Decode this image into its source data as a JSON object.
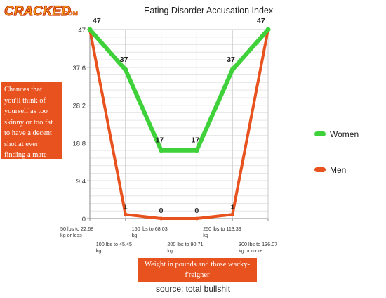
{
  "branding": {
    "logo_text": "CRACKED",
    "logo_suffix": "COM"
  },
  "chart_data": {
    "type": "line",
    "title": "Eating Disorder Accusation Index",
    "ylabel": "Chances that you'll think of yourself as too skinny or too fat to have a decent shot at ever finding a mate",
    "xlabel": "Weight in pounds and those wacky-f'reigner",
    "categories": [
      "50 lbs to 22.68 kg or less",
      "100 lbs to 45.45 kg",
      "150 lbs to 68.03 kg",
      "200 lbs to 90.71 kg",
      "250 lbs to 113.39 kg",
      "300 lbs to 136.07 kg or more"
    ],
    "category_lines": [
      [
        "50 lbs to 22.68",
        "kg or less"
      ],
      [
        "100 lbs to 45.45",
        "kg"
      ],
      [
        "150 lbs to 68.03",
        "kg"
      ],
      [
        "200 lbs to 90.71",
        "kg"
      ],
      [
        "250 lbs to 113.39",
        "kg"
      ],
      [
        "300 lbs to 136.07",
        "kg or more"
      ]
    ],
    "series": [
      {
        "name": "Women",
        "values": [
          47,
          37,
          17,
          17,
          37,
          47
        ],
        "labels": [
          "47",
          "37",
          "17",
          "17",
          "37",
          "47"
        ],
        "color": "#3ed13a"
      },
      {
        "name": "Men",
        "values": [
          47,
          1,
          0,
          0,
          1,
          47
        ],
        "labels": [
          "",
          "1",
          "0",
          "0",
          "1",
          ""
        ],
        "color": "#e8521f"
      }
    ],
    "yticks": [
      "0",
      "9.4",
      "18.8",
      "28.2",
      "37.6",
      "47"
    ],
    "ytick_values": [
      0,
      9.4,
      18.8,
      28.2,
      37.6,
      47
    ],
    "ylim": [
      0,
      47
    ],
    "grid": true,
    "legend_position": "right"
  },
  "footer": {
    "source": "source: total bullshit"
  }
}
